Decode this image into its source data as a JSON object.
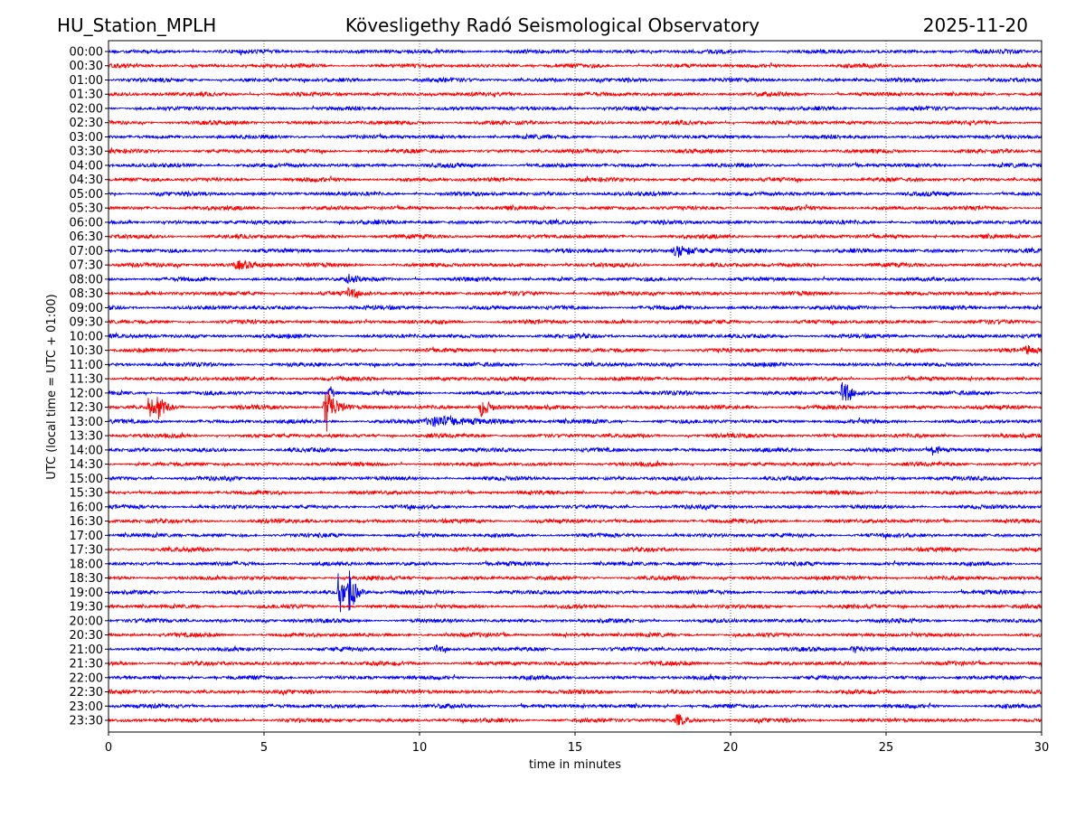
{
  "chart_data": {
    "type": "line",
    "title_left": "HU_Station_MPLH",
    "title_center": "Kövesligethy Radó Seismological Observatory",
    "title_right": "2025-11-20",
    "xlabel": "time in minutes",
    "ylabel": "UTC (local time = UTC + 01:00)",
    "xlim": [
      0,
      30
    ],
    "xticks": [
      0,
      5,
      10,
      15,
      20,
      25,
      30
    ],
    "grid": "vertical dotted at x ticks",
    "row_labels": [
      "00:00",
      "00:30",
      "01:00",
      "01:30",
      "02:00",
      "02:30",
      "03:00",
      "03:30",
      "04:00",
      "04:30",
      "05:00",
      "05:30",
      "06:00",
      "06:30",
      "07:00",
      "07:30",
      "08:00",
      "08:30",
      "09:00",
      "09:30",
      "10:00",
      "10:30",
      "11:00",
      "11:30",
      "12:00",
      "12:30",
      "13:00",
      "13:30",
      "14:00",
      "14:30",
      "15:00",
      "15:30",
      "16:00",
      "16:30",
      "17:00",
      "17:30",
      "18:00",
      "18:30",
      "19:00",
      "19:30",
      "20:00",
      "20:30",
      "21:00",
      "21:30",
      "22:00",
      "22:30",
      "23:00",
      "23:30"
    ],
    "series_colors": [
      "#0000ff",
      "#ff0000"
    ],
    "noise_level": 1,
    "events": [
      {
        "row": "07:00",
        "minute": 18.3,
        "amplitude": 4,
        "duration": 0.8
      },
      {
        "row": "07:30",
        "minute": 4.2,
        "amplitude": 2.5,
        "duration": 1.0
      },
      {
        "row": "08:00",
        "minute": 7.7,
        "amplitude": 3,
        "duration": 0.4
      },
      {
        "row": "08:30",
        "minute": 7.7,
        "amplitude": 3.5,
        "duration": 0.4
      },
      {
        "row": "10:30",
        "minute": 29.5,
        "amplitude": 3.5,
        "duration": 0.4
      },
      {
        "row": "12:00",
        "minute": 23.6,
        "amplitude": 10,
        "duration": 0.3
      },
      {
        "row": "12:00",
        "minute": 7.1,
        "amplitude": 8,
        "duration": 0.15
      },
      {
        "row": "12:30",
        "minute": 1.3,
        "amplitude": 7,
        "duration": 0.3
      },
      {
        "row": "12:30",
        "minute": 1.6,
        "amplitude": 7,
        "duration": 0.3
      },
      {
        "row": "12:30",
        "minute": 7.0,
        "amplitude": 18,
        "duration": 0.35
      },
      {
        "row": "12:30",
        "minute": 12.0,
        "amplitude": 7,
        "duration": 0.4
      },
      {
        "row": "13:00",
        "minute": 10.6,
        "amplitude": 3.5,
        "duration": 1.8
      },
      {
        "row": "14:00",
        "minute": 26.5,
        "amplitude": 4,
        "duration": 0.3
      },
      {
        "row": "19:00",
        "minute": 7.4,
        "amplitude": 20,
        "duration": 0.2
      },
      {
        "row": "19:00",
        "minute": 7.75,
        "amplitude": 16,
        "duration": 0.25
      },
      {
        "row": "21:00",
        "minute": 10.5,
        "amplitude": 3,
        "duration": 0.3
      },
      {
        "row": "21:00",
        "minute": 24.0,
        "amplitude": 2.5,
        "duration": 0.8
      },
      {
        "row": "23:30",
        "minute": 18.3,
        "amplitude": 5,
        "duration": 0.3
      }
    ]
  }
}
